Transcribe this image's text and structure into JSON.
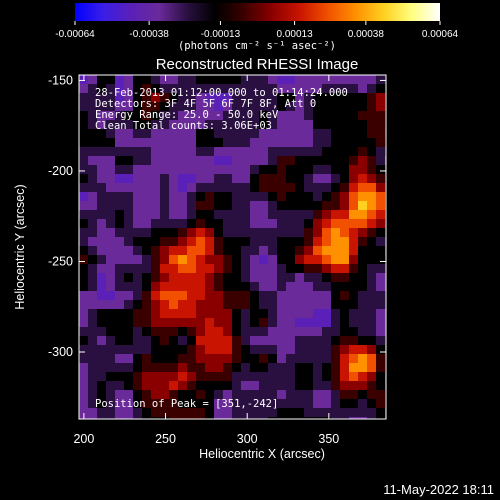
{
  "colorbar": {
    "ticks": [
      "-0.00064",
      "-0.00038",
      "-0.00013",
      "0.00013",
      "0.00038",
      "0.00064"
    ],
    "tick_values": [
      -0.00064,
      -0.00038,
      -0.00013,
      0.00013,
      0.00038,
      0.00064
    ],
    "range": [
      -0.00064,
      0.00064
    ],
    "units": "(photons cm⁻² s⁻¹ asec⁻²)",
    "colormap": [
      "#0000ff",
      "#3a1ee6",
      "#5a20b8",
      "#6a2a9a",
      "#2a1040",
      "#000000",
      "#3a0000",
      "#8a0000",
      "#c81400",
      "#f05000",
      "#ff9000",
      "#ffd020",
      "#ffff80",
      "#ffffff"
    ]
  },
  "chart_data": {
    "type": "heatmap",
    "title": "Reconstructed RHESSI Image",
    "xlabel": "Heliocentric X (arcsec)",
    "ylabel": "Heliocentric Y (arcsec)",
    "xlim": [
      197,
      385
    ],
    "ylim": [
      -337,
      -147
    ],
    "xticks": [
      200,
      250,
      300,
      350
    ],
    "yticks": [
      -150,
      -200,
      -250,
      -300
    ],
    "annotations": [
      "28-Feb-2013 01:12:00.000 to 01:14:24.000",
      "Detectors: 3F 4F 5F 6F 7F 8F, Att 0",
      "Energy Range: 25.0 - 50.0 keV",
      "Clean     Total counts: 3.06E+03",
      "Position of Peak = [351,-242]"
    ],
    "peak": [
      351,
      -242
    ],
    "grid": false,
    "colormap_description": "blue-purple (negative) to black to red-yellow-white (positive), flux map with bright regions lower-middle and right side"
  },
  "footer": {
    "timestamp": "11-May-2022 18:11"
  }
}
